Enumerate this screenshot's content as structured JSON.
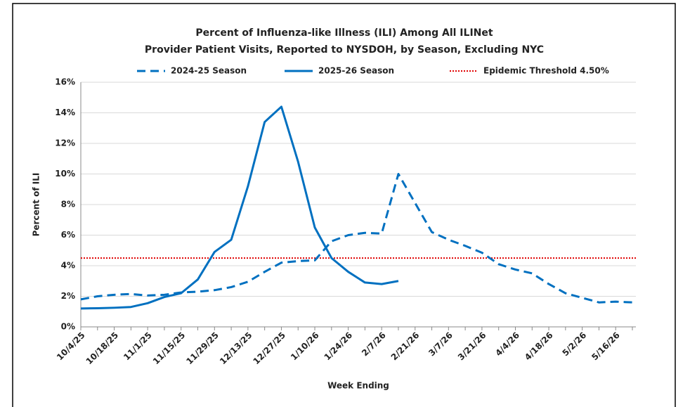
{
  "chart_data": {
    "type": "line",
    "title": [
      "Percent of Influenza-like Illness (ILI) Among All ILINet",
      "Provider Patient Visits, Reported to NYSDOH, by Season, Excluding NYC"
    ],
    "xlabel": "Week Ending",
    "ylabel": "Percent of ILI",
    "categories": [
      "10/4/25",
      null,
      "10/18/25",
      null,
      "11/1/25",
      null,
      "11/15/25",
      null,
      "11/29/25",
      null,
      "12/13/25",
      null,
      "12/27/25",
      null,
      "1/10/26",
      null,
      "1/24/26",
      null,
      "2/7/26",
      null,
      "2/21/26",
      null,
      "3/7/26",
      null,
      "3/21/26",
      null,
      "4/4/26",
      null,
      "4/18/26",
      null,
      "5/2/26",
      null,
      "5/16/26",
      null
    ],
    "series": [
      {
        "name": "2024-25 Season",
        "color": "#0070c0",
        "style": "dashed",
        "values": [
          1.8,
          2.0,
          2.1,
          2.15,
          2.05,
          2.1,
          2.25,
          2.3,
          2.4,
          2.6,
          2.95,
          3.6,
          4.2,
          4.3,
          4.35,
          5.6,
          6.0,
          6.15,
          6.1,
          10.0,
          8.1,
          6.2,
          5.7,
          5.3,
          4.85,
          4.1,
          3.75,
          3.5,
          2.8,
          2.2,
          1.9,
          1.6,
          1.65,
          1.6
        ]
      },
      {
        "name": "2025-26 Season",
        "color": "#0070c0",
        "style": "solid",
        "values": [
          1.2,
          1.22,
          1.25,
          1.3,
          1.55,
          1.95,
          2.2,
          3.1,
          4.9,
          5.7,
          9.2,
          13.4,
          14.4,
          10.8,
          6.5,
          4.5,
          3.6,
          2.9,
          2.8,
          3.0,
          null,
          null,
          null,
          null,
          null,
          null,
          null,
          null,
          null,
          null,
          null,
          null,
          null,
          null
        ]
      }
    ],
    "threshold": 4.5,
    "threshold_label": "Epidemic Threshold 4.50%",
    "threshold_color": "#e00000",
    "ylim": [
      0,
      16
    ],
    "yticks": [
      {
        "value": 0,
        "label": "0%"
      },
      {
        "value": 2,
        "label": "2%"
      },
      {
        "value": 4,
        "label": "4%"
      },
      {
        "value": 6,
        "label": "6%"
      },
      {
        "value": 8,
        "label": "8%"
      },
      {
        "value": 10,
        "label": "10%"
      },
      {
        "value": 12,
        "label": "12%"
      },
      {
        "value": 14,
        "label": "14%"
      },
      {
        "value": 16,
        "label": "16%"
      }
    ],
    "grid": true,
    "legend": "top"
  }
}
